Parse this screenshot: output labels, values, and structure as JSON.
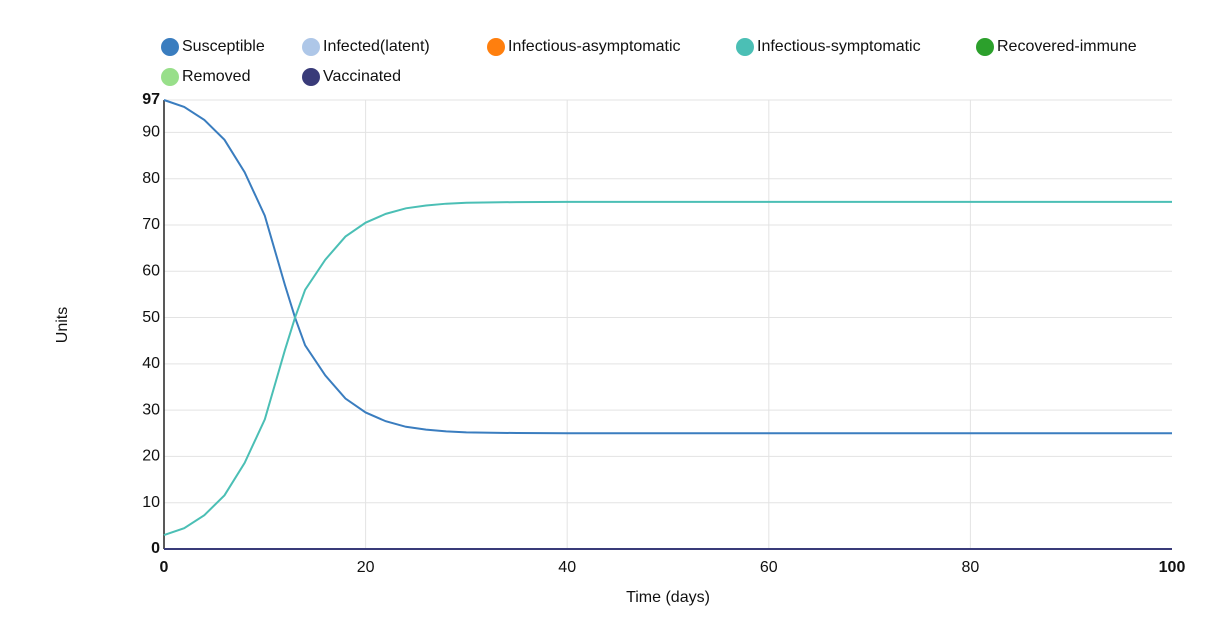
{
  "chart_data": {
    "type": "line",
    "x_label": "Time (days)",
    "y_label": "Units",
    "x": [
      0,
      2,
      4,
      6,
      8,
      10,
      12,
      13,
      14,
      16,
      18,
      20,
      22,
      24,
      26,
      28,
      30,
      35,
      40,
      50,
      60,
      70,
      80,
      90,
      100
    ],
    "series": [
      {
        "name": "Susceptible",
        "color": "#3a7dbf",
        "values": [
          97,
          95.5,
          92.7,
          88.4,
          81.4,
          72,
          57,
          50,
          44,
          37.5,
          32.5,
          29.5,
          27.6,
          26.4,
          25.8,
          25.4,
          25.2,
          25.05,
          25,
          25,
          25,
          25,
          25,
          25,
          25
        ]
      },
      {
        "name": "Infected(latent)",
        "color": "#aec7e8",
        "values": [
          0,
          0,
          0,
          0,
          0,
          0,
          0,
          0,
          0,
          0,
          0,
          0,
          0,
          0,
          0,
          0,
          0,
          0,
          0,
          0,
          0,
          0,
          0,
          0,
          0
        ]
      },
      {
        "name": "Infectious-asymptomatic",
        "color": "#ff7f0e",
        "values": [
          0,
          0,
          0,
          0,
          0,
          0,
          0,
          0,
          0,
          0,
          0,
          0,
          0,
          0,
          0,
          0,
          0,
          0,
          0,
          0,
          0,
          0,
          0,
          0,
          0
        ]
      },
      {
        "name": "Infectious-symptomatic",
        "color": "#4bbfb5",
        "values": [
          3,
          4.5,
          7.3,
          11.6,
          18.6,
          28,
          43,
          50,
          56,
          62.5,
          67.5,
          70.5,
          72.4,
          73.6,
          74.2,
          74.6,
          74.8,
          74.95,
          75,
          75,
          75,
          75,
          75,
          75,
          75
        ]
      },
      {
        "name": "Recovered-immune",
        "color": "#2ca02c",
        "values": [
          0,
          0,
          0,
          0,
          0,
          0,
          0,
          0,
          0,
          0,
          0,
          0,
          0,
          0,
          0,
          0,
          0,
          0,
          0,
          0,
          0,
          0,
          0,
          0,
          0
        ]
      },
      {
        "name": "Removed",
        "color": "#98df8a",
        "values": [
          0,
          0,
          0,
          0,
          0,
          0,
          0,
          0,
          0,
          0,
          0,
          0,
          0,
          0,
          0,
          0,
          0,
          0,
          0,
          0,
          0,
          0,
          0,
          0,
          0
        ]
      },
      {
        "name": "Vaccinated",
        "color": "#393b79",
        "values": [
          0,
          0,
          0,
          0,
          0,
          0,
          0,
          0,
          0,
          0,
          0,
          0,
          0,
          0,
          0,
          0,
          0,
          0,
          0,
          0,
          0,
          0,
          0,
          0,
          0
        ]
      }
    ],
    "xlim": [
      0,
      100
    ],
    "xticks": [
      0,
      20,
      40,
      60,
      80,
      100
    ],
    "ylim": [
      0,
      97
    ],
    "yticks": [
      0,
      10,
      20,
      30,
      40,
      50,
      60,
      70,
      80,
      90,
      97
    ],
    "grid": true,
    "legend": "top"
  }
}
